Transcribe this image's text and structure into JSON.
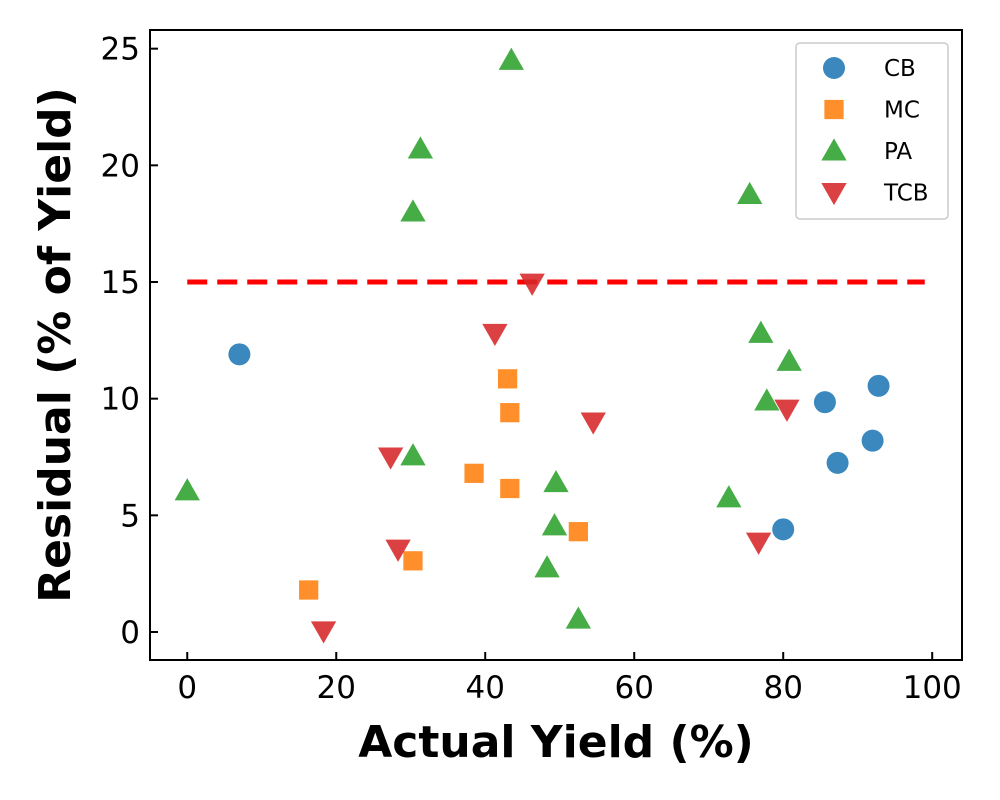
{
  "chart_data": {
    "type": "scatter",
    "title": "",
    "xlabel": "Actual Yield (%)",
    "ylabel": "Residual (% of Yield)",
    "xlim": [
      -5,
      104
    ],
    "ylim": [
      -1.2,
      25.8
    ],
    "xticks": [
      0,
      20,
      40,
      60,
      80,
      100
    ],
    "yticks": [
      0,
      5,
      10,
      15,
      20,
      25
    ],
    "grid": false,
    "legend_position": "top-right",
    "threshold_line": {
      "y": 15,
      "x_range": [
        0,
        99
      ],
      "color": "#ff0000",
      "style": "dashed"
    },
    "series": [
      {
        "name": "CB",
        "marker": "circle",
        "color": "#1f77b4",
        "points": [
          {
            "x": 7,
            "y": 11.9
          },
          {
            "x": 80,
            "y": 4.4
          },
          {
            "x": 85.6,
            "y": 9.85
          },
          {
            "x": 87.3,
            "y": 7.25
          },
          {
            "x": 92,
            "y": 8.2
          },
          {
            "x": 92.8,
            "y": 10.55
          }
        ]
      },
      {
        "name": "MC",
        "marker": "square",
        "color": "#ff7f0e",
        "points": [
          {
            "x": 16.3,
            "y": 1.8
          },
          {
            "x": 30.3,
            "y": 3.05
          },
          {
            "x": 38.5,
            "y": 6.8
          },
          {
            "x": 43,
            "y": 10.85
          },
          {
            "x": 43.3,
            "y": 9.4
          },
          {
            "x": 43.3,
            "y": 6.15
          },
          {
            "x": 52.5,
            "y": 4.3
          }
        ]
      },
      {
        "name": "PA",
        "marker": "triangle-up",
        "color": "#2ca02c",
        "points": [
          {
            "x": 0,
            "y": 6.05
          },
          {
            "x": 30.3,
            "y": 18.0
          },
          {
            "x": 30.3,
            "y": 7.55
          },
          {
            "x": 31.3,
            "y": 20.7
          },
          {
            "x": 43.5,
            "y": 24.5
          },
          {
            "x": 48.3,
            "y": 2.75
          },
          {
            "x": 49.3,
            "y": 4.55
          },
          {
            "x": 49.5,
            "y": 6.4
          },
          {
            "x": 52.5,
            "y": 0.55
          },
          {
            "x": 72.7,
            "y": 5.75
          },
          {
            "x": 75.5,
            "y": 18.75
          },
          {
            "x": 77,
            "y": 12.8
          },
          {
            "x": 77.8,
            "y": 9.9
          },
          {
            "x": 80.8,
            "y": 11.6
          }
        ]
      },
      {
        "name": "TCB",
        "marker": "triangle-down",
        "color": "#d62728",
        "points": [
          {
            "x": 18.3,
            "y": 0.05
          },
          {
            "x": 27.3,
            "y": 7.5
          },
          {
            "x": 28.3,
            "y": 3.55
          },
          {
            "x": 41.3,
            "y": 12.8
          },
          {
            "x": 46.3,
            "y": 14.95
          },
          {
            "x": 54.5,
            "y": 9.0
          },
          {
            "x": 76.7,
            "y": 3.85
          },
          {
            "x": 80.5,
            "y": 9.55
          }
        ]
      }
    ]
  }
}
